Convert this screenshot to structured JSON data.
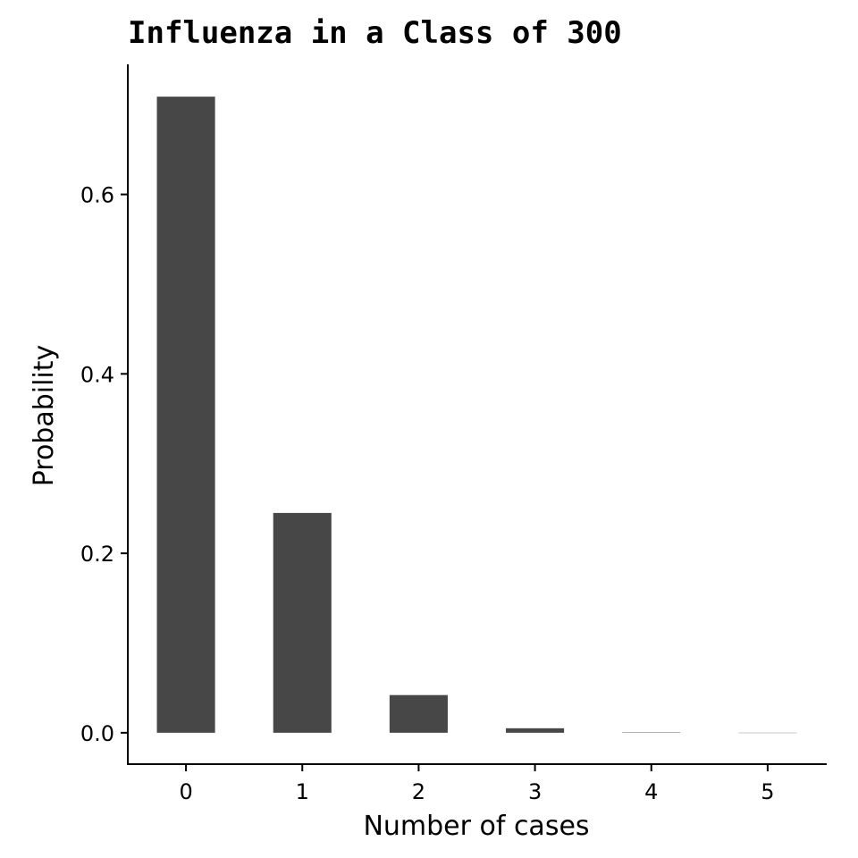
{
  "chart_data": {
    "type": "bar",
    "title": "Influenza in a Class of 300",
    "xlabel": "Number of cases",
    "ylabel": "Probability",
    "categories": [
      "0",
      "1",
      "2",
      "3",
      "4",
      "5"
    ],
    "values": [
      0.709,
      0.245,
      0.042,
      0.005,
      0.0004,
      3e-05
    ],
    "ylim": [
      -0.035,
      0.745
    ],
    "yticks": [
      0.0,
      0.2,
      0.4,
      0.6
    ],
    "ytick_labels": [
      "0.0",
      "0.2",
      "0.4",
      "0.6"
    ],
    "grid": false,
    "legend": "none",
    "bar_color": "#474747"
  }
}
